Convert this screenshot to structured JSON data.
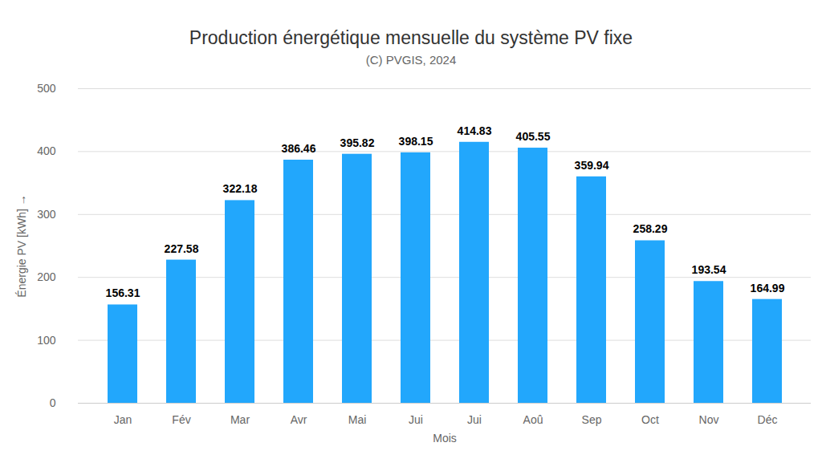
{
  "chart_data": {
    "type": "bar",
    "title": "Production énergétique mensuelle du système PV fixe",
    "subtitle": "(C) PVGIS, 2024",
    "x_label": "Mois",
    "y_label": "Énergie PV [kWh]",
    "categories": [
      "Jan",
      "Fév",
      "Mar",
      "Avr",
      "Mai",
      "Jui",
      "Jui",
      "Aoû",
      "Sep",
      "Oct",
      "Nov",
      "Déc"
    ],
    "values": [
      156.31,
      227.58,
      322.18,
      386.46,
      395.82,
      398.15,
      414.83,
      405.55,
      359.94,
      258.29,
      193.54,
      164.99
    ],
    "color": "#22a7fc",
    "ylim": [
      0,
      500
    ],
    "yticks": [
      0,
      100,
      200,
      300,
      400,
      500
    ],
    "grid": true,
    "data_labels": true
  }
}
